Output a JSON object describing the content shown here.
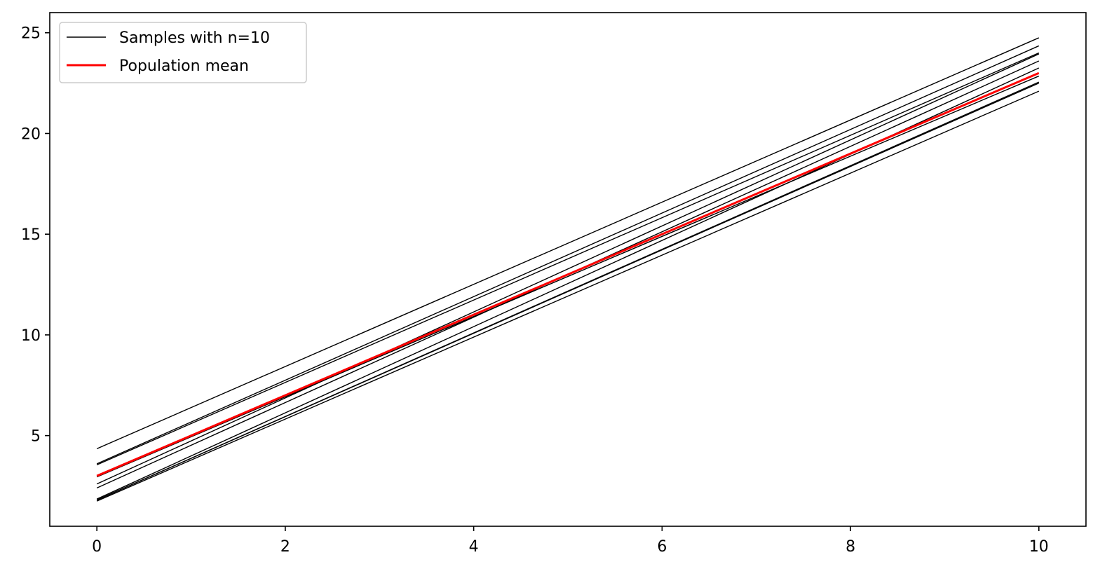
{
  "chart_data": {
    "type": "line",
    "title": "",
    "xlabel": "",
    "ylabel": "",
    "xlim": [
      -0.5,
      10.5
    ],
    "ylim": [
      0.5,
      26.0
    ],
    "x_ticks": [
      0,
      2,
      4,
      6,
      8,
      10
    ],
    "y_ticks": [
      5,
      10,
      15,
      20,
      25
    ],
    "grid": false,
    "legend_position": "top-left",
    "legend": [
      {
        "label": "Samples with n=10",
        "color": "#000000"
      },
      {
        "label": "Population mean",
        "color": "#ff0000"
      }
    ],
    "series": [
      {
        "color": "#000000",
        "x": [
          0,
          10
        ],
        "y": [
          4.35,
          24.75
        ]
      },
      {
        "color": "#000000",
        "x": [
          0,
          10
        ],
        "y": [
          3.6,
          24.35
        ]
      },
      {
        "color": "#000000",
        "x": [
          0,
          10
        ],
        "y": [
          3.55,
          24.0
        ]
      },
      {
        "color": "#000000",
        "x": [
          0,
          10
        ],
        "y": [
          2.6,
          23.95
        ]
      },
      {
        "color": "#000000",
        "x": [
          0,
          10
        ],
        "y": [
          2.4,
          23.6
        ]
      },
      {
        "color": "#000000",
        "x": [
          0,
          10
        ],
        "y": [
          1.85,
          23.25
        ]
      },
      {
        "color": "#000000",
        "x": [
          0,
          10
        ],
        "y": [
          1.8,
          22.5
        ]
      },
      {
        "color": "#000000",
        "x": [
          0,
          10
        ],
        "y": [
          1.75,
          22.1
        ]
      },
      {
        "color": "#000000",
        "x": [
          0,
          10
        ],
        "y": [
          2.95,
          22.85
        ]
      },
      {
        "color": "#000000",
        "x": [
          0,
          10
        ],
        "y": [
          1.8,
          22.55
        ]
      },
      {
        "name": "Population mean",
        "color": "#ff0000",
        "x": [
          0,
          10
        ],
        "y": [
          3.0,
          23.0
        ]
      }
    ]
  }
}
